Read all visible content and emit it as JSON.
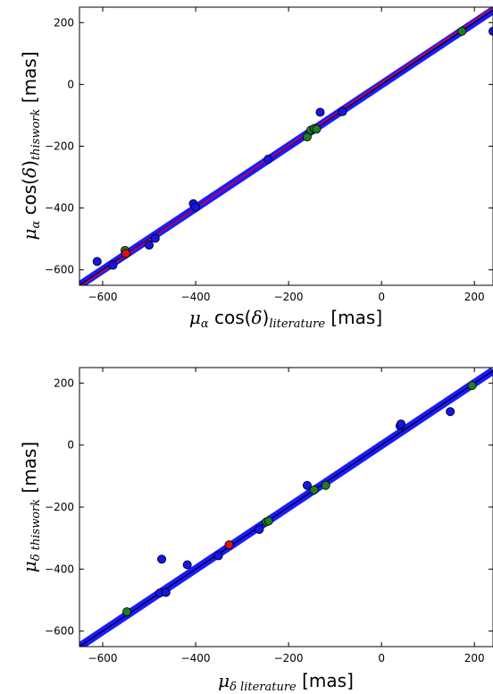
{
  "chart_data": [
    {
      "type": "scatter",
      "xlabel": {
        "mu": "μ",
        "sub": "α",
        "cos": " cos(",
        "delta": "δ",
        "close": ")",
        "subscript": "literature",
        "unit": " [mas]"
      },
      "ylabel": {
        "mu": "μ",
        "sub": "α",
        "cos": " cos(",
        "delta": "δ",
        "close": ")",
        "subscript": "thiswork",
        "unit": " [mas]"
      },
      "xlim": [
        -650,
        240
      ],
      "ylim": [
        -650,
        250
      ],
      "xticks": [
        -600,
        -400,
        -200,
        0,
        200
      ],
      "yticks": [
        -600,
        -400,
        -200,
        0,
        200
      ],
      "xtick_labels": [
        "−600",
        "−400",
        "−200",
        "0",
        "200"
      ],
      "ytick_labels": [
        "−600",
        "−400",
        "−200",
        "0",
        "200"
      ],
      "lines": [
        {
          "color": "#1a1aff",
          "width": "thick"
        },
        {
          "color": "#000000",
          "width": "thin",
          "slope": 1.0,
          "intercept": 0
        },
        {
          "color": "#e8001c",
          "width": "thin",
          "slope": 1.015,
          "intercept": 5
        }
      ],
      "series": [
        {
          "color": "#1515e6",
          "points": [
            [
              -612,
              -573
            ],
            [
              -578,
              -585
            ],
            [
              -500,
              -520
            ],
            [
              -487,
              -498
            ],
            [
              -405,
              -386
            ],
            [
              -400,
              -397
            ],
            [
              -244,
              -242
            ],
            [
              -132,
              -90
            ],
            [
              -84,
              -88
            ],
            [
              240,
              172
            ]
          ]
        },
        {
          "color": "#1e7d1e",
          "points": [
            [
              -552,
              -537
            ],
            [
              -160,
              -170
            ],
            [
              -152,
              -148
            ],
            [
              -145,
              -143
            ],
            [
              -140,
              -145
            ],
            [
              173,
              172
            ]
          ]
        },
        {
          "color": "#e01010",
          "points": [
            [
              -550,
              -547
            ]
          ]
        }
      ]
    },
    {
      "type": "scatter",
      "xlabel": {
        "mu": "μ",
        "sub": "δ literature",
        "unit": " [mas]"
      },
      "ylabel": {
        "mu": "μ",
        "sub": "δ thiswork",
        "unit": " [mas]"
      },
      "xlim": [
        -650,
        240
      ],
      "ylim": [
        -650,
        250
      ],
      "xticks": [
        -600,
        -400,
        -200,
        0,
        200
      ],
      "yticks": [
        -600,
        -400,
        -200,
        0,
        200
      ],
      "xtick_labels": [
        "−600",
        "−400",
        "−200",
        "0",
        "200"
      ],
      "ytick_labels": [
        "−600",
        "−400",
        "−200",
        "0",
        "200"
      ],
      "lines": [
        {
          "color": "#1a1aff",
          "width": "thick"
        },
        {
          "color": "#000000",
          "width": "thin",
          "slope": 1.0,
          "intercept": 0
        }
      ],
      "series": [
        {
          "color": "#1515e6",
          "points": [
            [
              -473,
              -368
            ],
            [
              -477,
              -477
            ],
            [
              -464,
              -475
            ],
            [
              -418,
              -386
            ],
            [
              -351,
              -357
            ],
            [
              -263,
              -272
            ],
            [
              -160,
              -130
            ],
            [
              40,
              62
            ],
            [
              42,
              68
            ],
            [
              148,
              108
            ]
          ]
        },
        {
          "color": "#1e7d1e",
          "points": [
            [
              -548,
              -538
            ],
            [
              -248,
              -248
            ],
            [
              -243,
              -245
            ],
            [
              -145,
              -145
            ],
            [
              -120,
              -130
            ],
            [
              195,
              192
            ]
          ]
        },
        {
          "color": "#e01010",
          "points": [
            [
              -328,
              -322
            ]
          ]
        }
      ]
    }
  ]
}
